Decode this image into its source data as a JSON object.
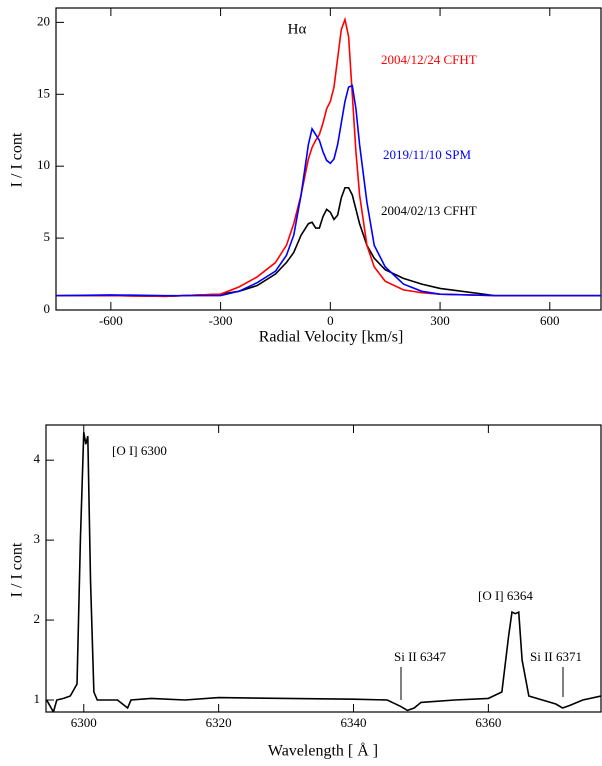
{
  "chart_data": [
    {
      "type": "line",
      "title": "Hα",
      "xlabel": "Radial Velocity [km/s]",
      "ylabel": "I / I cont",
      "xlim": [
        -750,
        740
      ],
      "ylim": [
        0,
        21
      ],
      "xticks": [
        -600,
        -300,
        0,
        300,
        600
      ],
      "yticks": [
        0,
        5,
        10,
        15,
        20
      ],
      "x": [
        -750,
        -600,
        -450,
        -300,
        -250,
        -200,
        -150,
        -120,
        -100,
        -80,
        -60,
        -50,
        -40,
        -30,
        -20,
        -10,
        0,
        10,
        20,
        30,
        40,
        50,
        60,
        70,
        80,
        100,
        120,
        150,
        200,
        250,
        300,
        450,
        600,
        740
      ],
      "series": [
        {
          "name": "2004/02/13 CFHT",
          "color": "#000000",
          "values": [
            1.0,
            1.0,
            0.95,
            1.1,
            1.3,
            1.7,
            2.5,
            3.3,
            4.0,
            5.2,
            6.0,
            6.1,
            5.7,
            5.7,
            6.5,
            7.0,
            6.8,
            6.3,
            6.6,
            7.8,
            8.5,
            8.5,
            8.0,
            7.0,
            6.0,
            4.5,
            3.6,
            2.8,
            2.2,
            1.8,
            1.5,
            1.0,
            1.0,
            1.0
          ]
        },
        {
          "name": "2004/12/24 CFHT",
          "color": "#ff0000",
          "values": [
            1.0,
            1.0,
            0.95,
            1.1,
            1.6,
            2.3,
            3.3,
            4.5,
            6.0,
            8.0,
            10.5,
            11.3,
            11.8,
            12.2,
            13.0,
            14.0,
            14.5,
            15.5,
            17.5,
            19.5,
            20.2,
            19.0,
            15.0,
            11.0,
            8.0,
            4.5,
            3.0,
            2.0,
            1.4,
            1.2,
            1.1,
            1.0,
            1.0,
            1.0
          ]
        },
        {
          "name": "2019/11/10 SPM",
          "color": "#0000ff",
          "values": [
            1.0,
            1.05,
            1.0,
            1.0,
            1.3,
            1.9,
            2.7,
            3.8,
            5.2,
            8.0,
            11.5,
            12.6,
            12.2,
            11.8,
            11.0,
            10.4,
            10.2,
            10.5,
            11.5,
            13.0,
            14.5,
            15.5,
            15.6,
            14.0,
            11.5,
            7.5,
            4.5,
            3.0,
            1.8,
            1.3,
            1.1,
            1.0,
            1.0,
            1.0
          ]
        }
      ]
    },
    {
      "type": "line",
      "xlabel": "Wavelength [ Å ]",
      "ylabel": "I / I cont",
      "xlim": [
        6294.4,
        6376.7
      ],
      "ylim": [
        0.85,
        4.44
      ],
      "xticks": [
        6300,
        6320,
        6340,
        6360
      ],
      "yticks": [
        1,
        2,
        3,
        4
      ],
      "annotations": [
        "[O I] 6300",
        "[O I] 6364",
        "Si II 6347",
        "Si II 6371"
      ],
      "x": [
        6294.5,
        6295.5,
        6296,
        6297,
        6298,
        6299,
        6299.5,
        6300,
        6300.3,
        6300.6,
        6301,
        6301.5,
        6302,
        6305,
        6306.5,
        6307,
        6310,
        6315,
        6320,
        6330,
        6340,
        6345,
        6347,
        6348,
        6349,
        6350,
        6355,
        6360,
        6362,
        6363,
        6363.5,
        6364,
        6364.5,
        6365,
        6366,
        6368,
        6370,
        6371,
        6372,
        6374,
        6376.7
      ],
      "series": [
        {
          "color": "#000000",
          "values": [
            1.0,
            0.85,
            1.0,
            1.02,
            1.05,
            1.2,
            3.0,
            4.35,
            4.2,
            4.3,
            2.5,
            1.1,
            1.0,
            1.0,
            0.9,
            1.0,
            1.02,
            1.0,
            1.03,
            1.02,
            1.01,
            1.0,
            0.92,
            0.87,
            0.9,
            0.97,
            1.0,
            1.02,
            1.1,
            1.8,
            2.1,
            2.08,
            2.1,
            1.5,
            1.05,
            1.0,
            0.95,
            0.9,
            0.93,
            1.0,
            1.05
          ]
        }
      ]
    }
  ]
}
